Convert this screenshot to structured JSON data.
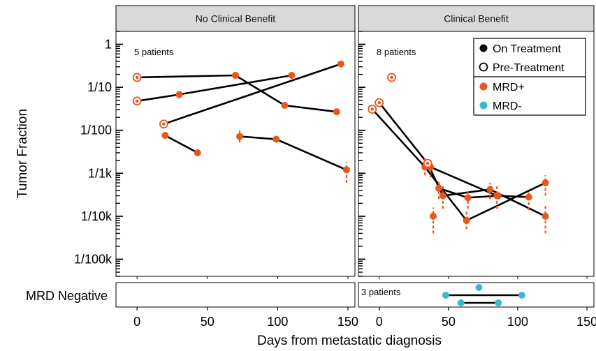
{
  "chart_data": {
    "type": "scatter",
    "xlabel": "Days from metastatic diagnosis",
    "ylabel": "Tumor Fraction",
    "x_ticks": [
      0,
      50,
      100,
      150
    ],
    "xlim": [
      -15,
      155
    ],
    "y_scale": "log",
    "ylim": [
      4e-06,
      2
    ],
    "y_ticks": [
      {
        "value": 1,
        "label": "1"
      },
      {
        "value": 0.1,
        "label": "1/10"
      },
      {
        "value": 0.01,
        "label": "1/100"
      },
      {
        "value": 0.001,
        "label": "1/1k"
      },
      {
        "value": 0.0001,
        "label": "1/10k"
      },
      {
        "value": 1e-05,
        "label": "1/100k"
      }
    ],
    "bottom_row_label": "MRD Negative",
    "legend": {
      "position": "top-right",
      "entries": [
        {
          "label": "On Treatment",
          "marker": "filled",
          "color": "#000000"
        },
        {
          "label": "Pre-Treatment",
          "marker": "open",
          "color": "#000000"
        },
        {
          "label": "MRD+",
          "marker": "filled",
          "color": "#E8561C"
        },
        {
          "label": "MRD-",
          "marker": "filled",
          "color": "#3BB9CF"
        }
      ]
    },
    "colors": {
      "mrd_pos": "#E8561C",
      "mrd_neg": "#3BB9CF",
      "line": "#000000",
      "strip": "#d9d9d9"
    },
    "panels": [
      {
        "strip": "No Clinical Benefit",
        "annotation": "5 patients",
        "mrd_negative_annotation": "",
        "patients": [
          {
            "points": [
              {
                "x": 0,
                "y": 0.17,
                "pre": true
              },
              {
                "x": 70,
                "y": 0.19
              },
              {
                "x": 105,
                "y": 0.038
              },
              {
                "x": 142,
                "y": 0.027
              }
            ]
          },
          {
            "points": [
              {
                "x": 0,
                "y": 0.048,
                "pre": true
              },
              {
                "x": 30,
                "y": 0.068
              },
              {
                "x": 110,
                "y": 0.19
              }
            ]
          },
          {
            "points": [
              {
                "x": 19,
                "y": 0.014,
                "pre": true
              },
              {
                "x": 145,
                "y": 0.35
              }
            ]
          },
          {
            "points": [
              {
                "x": 20,
                "y": 0.0076
              },
              {
                "x": 43,
                "y": 0.003
              }
            ]
          },
          {
            "points": [
              {
                "x": 73,
                "y": 0.0072,
                "err": [
                  0.0052,
                  0.0098
                ]
              },
              {
                "x": 99,
                "y": 0.0062
              },
              {
                "x": 149,
                "y": 0.0012,
                "err": [
                  0.0006,
                  0.0018
                ]
              }
            ]
          }
        ],
        "mrd_negative": []
      },
      {
        "strip": "Clinical Benefit",
        "annotation": "8 patients",
        "mrd_negative_annotation": "3 patients",
        "patients": [
          {
            "points": [
              {
                "x": 9,
                "y": 0.17,
                "pre": true
              }
            ]
          },
          {
            "points": [
              {
                "x": -5,
                "y": 0.031,
                "pre": true
              },
              {
                "x": 33,
                "y": 0.0014,
                "err": [
                  0.0009,
                  0.0023
                ]
              },
              {
                "x": 63,
                "y": 8e-05,
                "err": [
                  5e-05,
                  0.00013
                ]
              },
              {
                "x": 120,
                "y": 0.0006,
                "err": [
                  0.0003,
                  0.0009
                ]
              }
            ]
          },
          {
            "points": [
              {
                "x": 0,
                "y": 0.044,
                "pre": true
              },
              {
                "x": 37,
                "y": 0.0014,
                "err": [
                  0.0008,
                  0.0022
                ]
              },
              {
                "x": 85,
                "y": 0.0003,
                "err": [
                  0.00015,
                  0.0005
                ]
              },
              {
                "x": 108,
                "y": 0.00028,
                "err": [
                  0.00014,
                  0.0004
                ]
              }
            ]
          },
          {
            "points": [
              {
                "x": 35,
                "y": 0.0017,
                "pre": true
              },
              {
                "x": 46,
                "y": 0.0003,
                "err": [
                  0.00015,
                  0.0005
                ]
              },
              {
                "x": 80,
                "y": 0.00042,
                "err": [
                  0.00025,
                  0.0006
                ]
              },
              {
                "x": 120,
                "y": 0.0001,
                "err": [
                  4e-05,
                  0.00018
                ]
              }
            ]
          },
          {
            "points": [
              {
                "x": 43,
                "y": 0.00045,
                "err": [
                  0.00025,
                  0.0007
                ]
              },
              {
                "x": 64,
                "y": 0.00027,
                "err": [
                  0.00015,
                  0.0004
                ]
              },
              {
                "x": 86,
                "y": 0.0003
              }
            ]
          },
          {
            "points": [
              {
                "x": 39,
                "y": 0.0001,
                "err": [
                  4e-05,
                  0.00016
                ]
              }
            ]
          }
        ],
        "mrd_negative": [
          {
            "points": [
              {
                "x": 72,
                "row": 0
              }
            ]
          },
          {
            "points": [
              {
                "x": 48,
                "row": 1
              },
              {
                "x": 103,
                "row": 1
              }
            ]
          },
          {
            "points": [
              {
                "x": 59,
                "row": 2
              },
              {
                "x": 86,
                "row": 2
              }
            ]
          }
        ]
      }
    ]
  }
}
